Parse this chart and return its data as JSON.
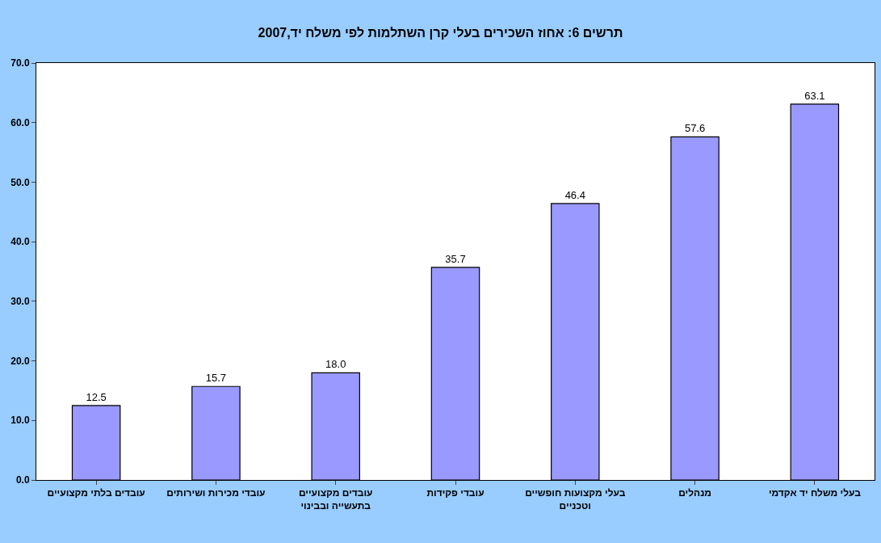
{
  "chart_data": {
    "type": "bar",
    "title": "תרשים 6: אחוז השכירים בעלי קרן השתלמות לפי משלח יד,2007",
    "categories": [
      "עובדים בלתי מקצועיים",
      "עובדי מכירות ושירותים",
      "עובדים מקצועיים בתעשייה ובבינוי",
      "עובדי פקידות",
      "בעלי מקצועות חופשיים וטכניים",
      "מנהלים",
      "בעלי משלח יד אקדמי"
    ],
    "values": [
      12.5,
      15.7,
      18.0,
      35.7,
      46.4,
      57.6,
      63.1
    ],
    "value_labels": [
      "12.5",
      "15.7",
      "18.0",
      "35.7",
      "46.4",
      "57.6",
      "63.1"
    ],
    "color": "#9999ff",
    "ylim": [
      0,
      70
    ],
    "yticks": [
      {
        "value": 0,
        "label": "0.0"
      },
      {
        "value": 10,
        "label": "10.0"
      },
      {
        "value": 20,
        "label": "20.0"
      },
      {
        "value": 30,
        "label": "30.0"
      },
      {
        "value": 40,
        "label": "40.0"
      },
      {
        "value": 50,
        "label": "50.0"
      },
      {
        "value": 60,
        "label": "60.0"
      },
      {
        "value": 70,
        "label": "70.0"
      }
    ],
    "grid": false,
    "legend": false
  }
}
